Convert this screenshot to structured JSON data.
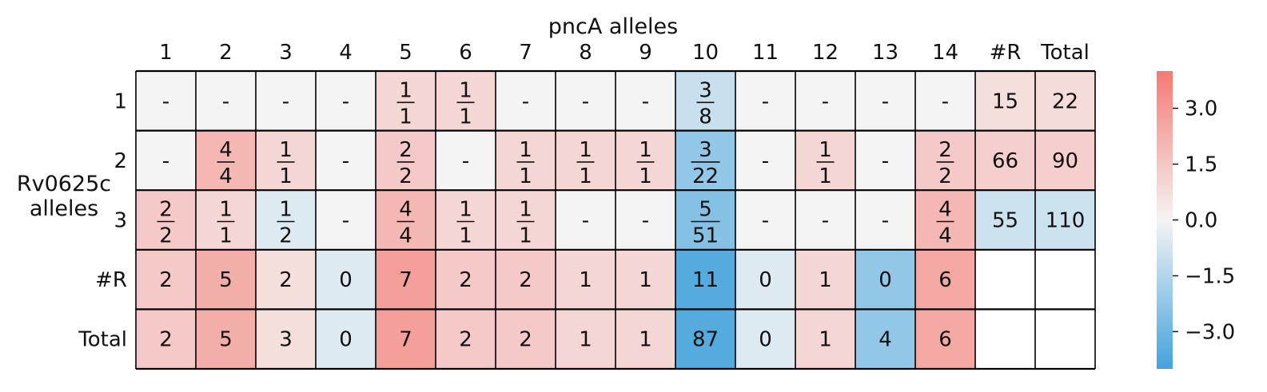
{
  "chart_data": {
    "type": "heatmap",
    "title": "pncA alleles",
    "ylabel": [
      "Rv0625c",
      "alleles"
    ],
    "col_labels": [
      "1",
      "2",
      "3",
      "4",
      "5",
      "6",
      "7",
      "8",
      "9",
      "10",
      "11",
      "12",
      "13",
      "14",
      "#R",
      "Total"
    ],
    "row_labels": [
      "1",
      "2",
      "3",
      "#R",
      "Total"
    ],
    "colorbar": {
      "ticks": [
        "3.0",
        "1.5",
        "0.0",
        "−1.5",
        "−3.0"
      ],
      "tick_values": [
        3.0,
        1.5,
        0.0,
        -1.5,
        -3.0
      ],
      "vmin": -4.0,
      "vmax": 4.0,
      "colors": {
        "negative": "#43a2dc",
        "zero": "#f4f4f4",
        "positive": "#f47a72"
      }
    },
    "cells": [
      [
        {
          "t": "-",
          "c": 0.0
        },
        {
          "t": "-",
          "c": 0.0
        },
        {
          "t": "-",
          "c": 0.0
        },
        {
          "t": "-",
          "c": 0.0
        },
        {
          "n": "1",
          "d": "1",
          "c": 1.0
        },
        {
          "n": "1",
          "d": "1",
          "c": 1.0
        },
        {
          "t": "-",
          "c": 0.0
        },
        {
          "t": "-",
          "c": 0.0
        },
        {
          "t": "-",
          "c": 0.0
        },
        {
          "n": "3",
          "d": "8",
          "c": -1.0
        },
        {
          "t": "-",
          "c": 0.0
        },
        {
          "t": "-",
          "c": 0.0
        },
        {
          "t": "-",
          "c": 0.0
        },
        {
          "t": "-",
          "c": 0.0
        },
        {
          "t": "15",
          "c": 0.7
        },
        {
          "t": "22",
          "c": 0.8
        }
      ],
      [
        {
          "t": "-",
          "c": 0.0
        },
        {
          "n": "4",
          "d": "4",
          "c": 2.0
        },
        {
          "n": "1",
          "d": "1",
          "c": 1.0
        },
        {
          "t": "-",
          "c": 0.0
        },
        {
          "n": "2",
          "d": "2",
          "c": 1.4
        },
        {
          "t": "-",
          "c": 0.0
        },
        {
          "n": "1",
          "d": "1",
          "c": 1.0
        },
        {
          "n": "1",
          "d": "1",
          "c": 1.0
        },
        {
          "n": "1",
          "d": "1",
          "c": 1.0
        },
        {
          "n": "3",
          "d": "22",
          "c": -2.2
        },
        {
          "t": "-",
          "c": 0.0
        },
        {
          "n": "1",
          "d": "1",
          "c": 1.0
        },
        {
          "t": "-",
          "c": 0.0
        },
        {
          "n": "2",
          "d": "2",
          "c": 1.4
        },
        {
          "t": "66",
          "c": 1.2
        },
        {
          "t": "90",
          "c": 1.2
        }
      ],
      [
        {
          "n": "2",
          "d": "2",
          "c": 1.4
        },
        {
          "n": "1",
          "d": "1",
          "c": 1.0
        },
        {
          "n": "1",
          "d": "2",
          "c": -0.5
        },
        {
          "t": "-",
          "c": 0.0
        },
        {
          "n": "4",
          "d": "4",
          "c": 2.0
        },
        {
          "n": "1",
          "d": "1",
          "c": 1.0
        },
        {
          "n": "1",
          "d": "1",
          "c": 1.0
        },
        {
          "t": "-",
          "c": 0.0
        },
        {
          "t": "-",
          "c": 0.0
        },
        {
          "n": "5",
          "d": "51",
          "c": -2.5
        },
        {
          "t": "-",
          "c": 0.0
        },
        {
          "t": "-",
          "c": 0.0
        },
        {
          "t": "-",
          "c": 0.0
        },
        {
          "n": "4",
          "d": "4",
          "c": 2.0
        },
        {
          "t": "55",
          "c": -0.9
        },
        {
          "t": "110",
          "c": -0.9
        }
      ],
      [
        {
          "t": "2",
          "c": 1.4
        },
        {
          "t": "5",
          "c": 2.3
        },
        {
          "t": "2",
          "c": 0.7
        },
        {
          "t": "0",
          "c": -0.5
        },
        {
          "t": "7",
          "c": 2.8
        },
        {
          "t": "2",
          "c": 1.4
        },
        {
          "t": "2",
          "c": 1.4
        },
        {
          "t": "1",
          "c": 1.0
        },
        {
          "t": "1",
          "c": 1.0
        },
        {
          "t": "11",
          "c": -3.6
        },
        {
          "t": "0",
          "c": -0.5
        },
        {
          "t": "1",
          "c": 1.0
        },
        {
          "t": "0",
          "c": -2.2
        },
        {
          "t": "6",
          "c": 2.5
        },
        {
          "t": "",
          "c": null
        },
        {
          "t": "",
          "c": null
        }
      ],
      [
        {
          "t": "2",
          "c": 1.4
        },
        {
          "t": "5",
          "c": 2.3
        },
        {
          "t": "3",
          "c": 0.7
        },
        {
          "t": "0",
          "c": -0.5
        },
        {
          "t": "7",
          "c": 2.8
        },
        {
          "t": "2",
          "c": 1.4
        },
        {
          "t": "2",
          "c": 1.4
        },
        {
          "t": "1",
          "c": 1.0
        },
        {
          "t": "1",
          "c": 1.0
        },
        {
          "t": "87",
          "c": -3.6
        },
        {
          "t": "0",
          "c": -0.5
        },
        {
          "t": "1",
          "c": 1.0
        },
        {
          "t": "4",
          "c": -2.2
        },
        {
          "t": "6",
          "c": 2.5
        },
        {
          "t": "",
          "c": null
        },
        {
          "t": "",
          "c": null
        }
      ]
    ]
  }
}
